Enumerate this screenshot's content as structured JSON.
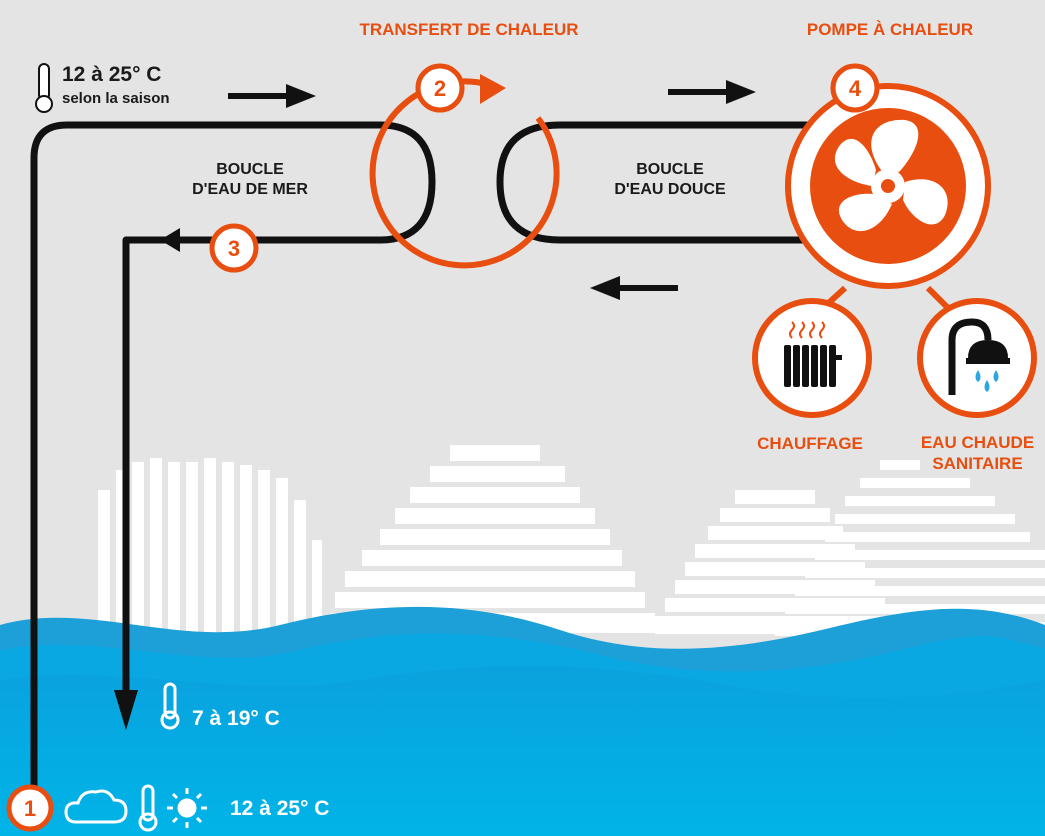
{
  "titles": {
    "heat_transfer": "TRANSFERT DE CHALEUR",
    "heat_pump": "POMPE À CHALEUR"
  },
  "loops": {
    "sea_water": [
      "BOUCLE",
      "D'EAU DE MER"
    ],
    "fresh_water": [
      "BOUCLE",
      "D'EAU DOUCE"
    ]
  },
  "temperatures": {
    "top": "12 à 25° C",
    "top_note": "selon la saison",
    "sea_outlet": "7 à 19° C",
    "sea_inlet": "12 à 25° C"
  },
  "steps": [
    "1",
    "2",
    "3",
    "4"
  ],
  "outputs": {
    "heating": "CHAUFFAGE",
    "hot_water": [
      "EAU CHAUDE",
      "SANITAIRE"
    ]
  },
  "colors": {
    "accent": "#e84e0f",
    "sea": "#00a8e0",
    "background": "#e4e4e4",
    "line": "#111111"
  },
  "icons": [
    "thermometer-icon",
    "cloud-icon",
    "sun-icon",
    "fan-icon",
    "radiator-icon",
    "shower-icon"
  ]
}
